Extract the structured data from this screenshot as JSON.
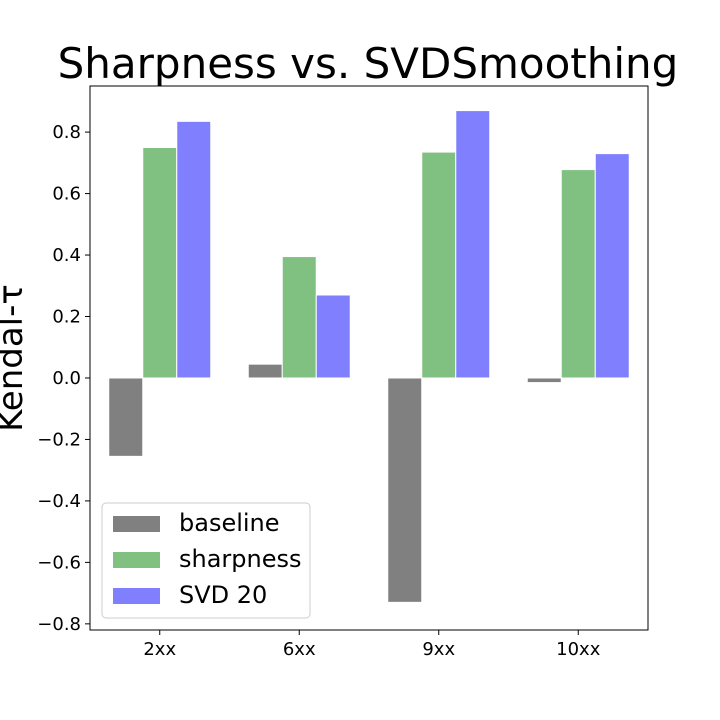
{
  "chart_data": {
    "type": "bar",
    "title": "Sharpness vs. SVDSmoothing",
    "xlabel": "",
    "ylabel": "Kendal-τ",
    "categories": [
      "2xx",
      "6xx",
      "9xx",
      "10xx"
    ],
    "series": [
      {
        "name": "baseline",
        "color": "#808080",
        "values": [
          -0.255,
          0.045,
          -0.73,
          -0.015
        ]
      },
      {
        "name": "sharpness",
        "color": "#80c080",
        "values": [
          0.75,
          0.395,
          0.735,
          0.678
        ]
      },
      {
        "name": "SVD 20",
        "color": "#8080ff",
        "values": [
          0.835,
          0.27,
          0.87,
          0.73
        ]
      }
    ],
    "ylim": [
      -0.82,
      0.95
    ],
    "yticks": [
      -0.8,
      -0.6,
      -0.4,
      -0.2,
      0.0,
      0.2,
      0.4,
      0.6,
      0.8
    ],
    "ytick_labels": [
      "−0.8",
      "−0.6",
      "−0.4",
      "−0.2",
      "0.0",
      "0.2",
      "0.4",
      "0.6",
      "0.8"
    ],
    "grid": false,
    "legend_position": "lower-left"
  }
}
